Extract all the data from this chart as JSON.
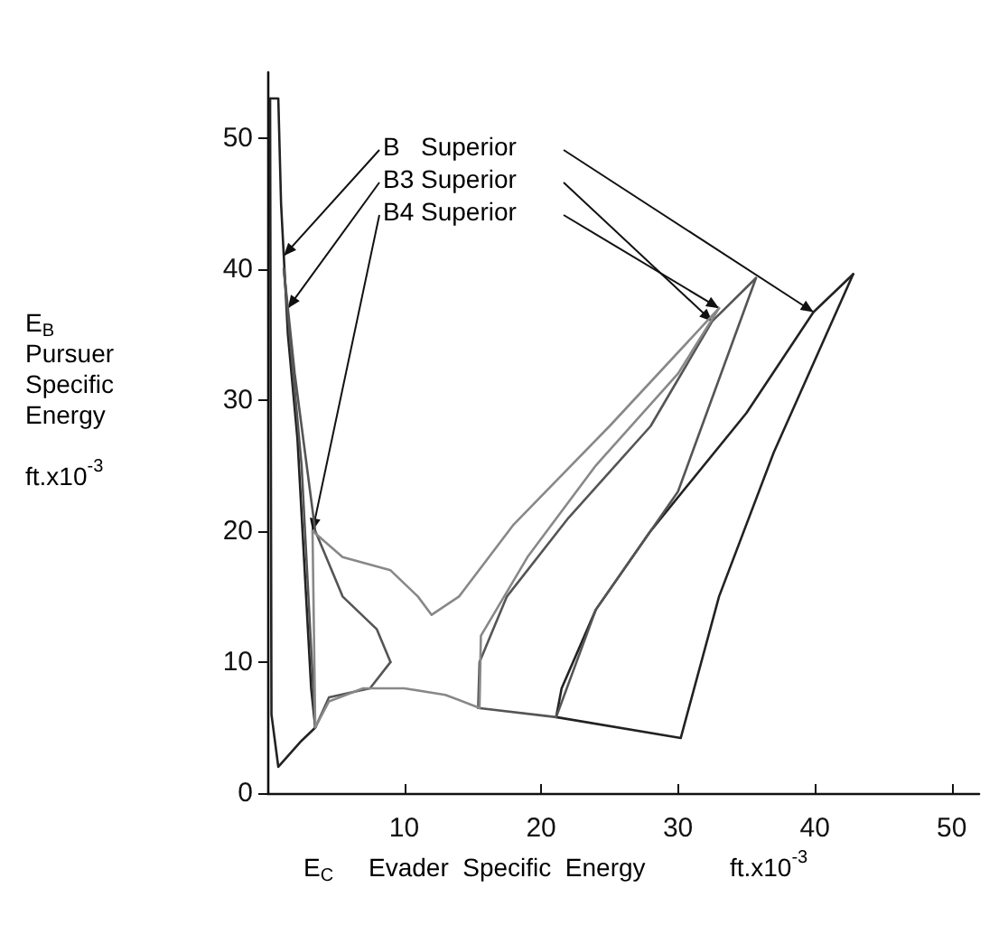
{
  "chart_data": {
    "type": "line",
    "xlabel": "E$_{C}$     Evader  Specific  Energy            ft.x10$^{-3}$",
    "ylabel": "E$_{B}$\nPursuer\nSpecific\nEnergy\n\nft.x10$^{-3}$",
    "xlim": [
      0,
      52
    ],
    "xticks": [
      {
        "value": 0,
        "label": null
      },
      10,
      20,
      30,
      40,
      50
    ],
    "ylim": [
      0,
      55
    ],
    "yticks": [
      0,
      10,
      20,
      30,
      40,
      50
    ],
    "grid": false,
    "marker": "none",
    "line_style": "solid",
    "series": [
      {
        "color": "#222222",
        "x": [
          0.2,
          0.8,
          1.0,
          1.5,
          2.2,
          3.2,
          3.5
        ],
        "values": [
          53,
          53,
          45,
          35,
          27,
          8,
          5
        ]
      },
      {
        "color": "#222222",
        "x": [
          0.2,
          0.3,
          0.8,
          2.5,
          3.5
        ],
        "values": [
          53,
          6,
          2,
          4,
          5
        ]
      },
      {
        "color": "#222222",
        "x": [
          21.1,
          30.2,
          33,
          37,
          42.8
        ],
        "values": [
          5.8,
          4.2,
          15,
          26,
          39.6
        ]
      },
      {
        "color": "#222222",
        "x": [
          21.1,
          21.5,
          24,
          28,
          35,
          39.9,
          42.8
        ],
        "values": [
          5.8,
          8,
          14,
          20,
          29,
          36.7,
          39.6
        ]
      },
      {
        "color": "#555555",
        "x": [
          1.2,
          2,
          3.5,
          5.5,
          8,
          9
        ],
        "values": [
          40,
          32,
          20,
          15,
          12.5,
          10
        ]
      },
      {
        "color": "#555555",
        "x": [
          1.2,
          2.5,
          3.5,
          4.5,
          7.5,
          9
        ],
        "values": [
          40,
          25,
          5,
          7.3,
          8,
          10
        ]
      },
      {
        "color": "#555555",
        "x": [
          15.4,
          21.1,
          24,
          30,
          35.7
        ],
        "values": [
          6.5,
          5.8,
          14,
          23,
          39.3
        ]
      },
      {
        "color": "#555555",
        "x": [
          15.4,
          15.5,
          17.5,
          22,
          28,
          32.5,
          35.7
        ],
        "values": [
          6.5,
          10,
          15,
          21,
          28,
          36,
          39.3
        ]
      },
      {
        "color": "#888888",
        "x": [
          3.3,
          5.5,
          9,
          11,
          12,
          14,
          18,
          25,
          33
        ],
        "values": [
          20,
          18,
          17,
          15,
          13.6,
          15,
          20.5,
          28,
          37
        ]
      },
      {
        "color": "#888888",
        "x": [
          3.3,
          3.5,
          4.5,
          7,
          10,
          13,
          15.5,
          15.6,
          19,
          24,
          30,
          33
        ],
        "values": [
          20,
          5,
          7,
          8,
          8,
          7.5,
          6.5,
          12,
          18,
          25,
          32,
          37
        ]
      }
    ],
    "annotations": [
      {
        "text": "B   Superior",
        "x": 1.2,
        "y": 41
      },
      {
        "text": "B3 Superior",
        "x": 1.5,
        "y": 37
      },
      {
        "text": "B4 Superior",
        "x": 3.3,
        "y": 20
      }
    ]
  }
}
